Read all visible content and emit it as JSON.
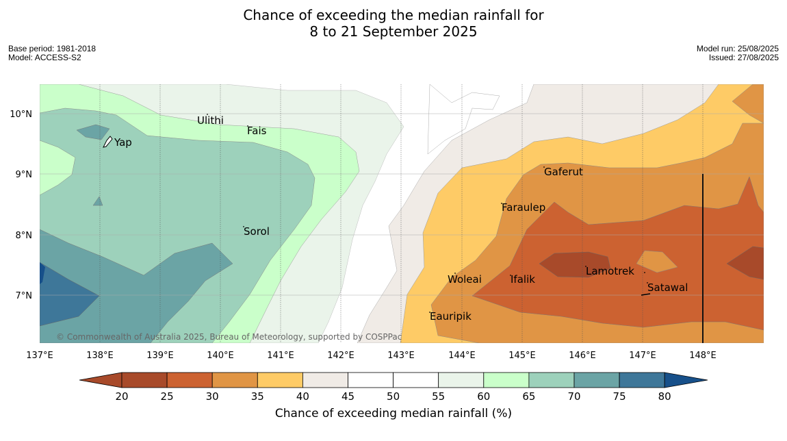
{
  "header": {
    "title_line1": "Chance of exceeding the median rainfall for",
    "title_line2": "8 to 21 September 2025",
    "base_period": "Base period: 1981-2018",
    "model": "Model: ACCESS-S2",
    "model_run": "Model run: 25/08/2025",
    "issued": "Issued: 27/08/2025"
  },
  "map": {
    "lon_labels": [
      "137°E",
      "138°E",
      "139°E",
      "140°E",
      "141°E",
      "142°E",
      "143°E",
      "144°E",
      "145°E",
      "146°E",
      "147°E",
      "148°E"
    ],
    "lat_labels": [
      "10°N",
      "9°N",
      "8°N",
      "7°N"
    ],
    "places": [
      {
        "name": "Ulithi"
      },
      {
        "name": "Fais"
      },
      {
        "name": "Yap"
      },
      {
        "name": "Gaferut"
      },
      {
        "name": "Faraulep"
      },
      {
        "name": "Sorol"
      },
      {
        "name": "Lamotrek"
      },
      {
        "name": "Woleai"
      },
      {
        "name": "Ifalik"
      },
      {
        "name": "Satawal"
      },
      {
        "name": "Eauripik"
      }
    ],
    "copyright": "© Commonwealth of Australia 2025, Bureau of Meteorology, supported by COSPPac"
  },
  "colorbar": {
    "ticks": [
      "20",
      "25",
      "30",
      "35",
      "40",
      "45",
      "50",
      "55",
      "60",
      "65",
      "70",
      "75",
      "80"
    ],
    "colors": [
      "#a84a2a",
      "#cc6231",
      "#e09545",
      "#fecb66",
      "#f0ebe6",
      "#ffffff",
      "#ffffff",
      "#eaf4ea",
      "#caffca",
      "#9dd1bb",
      "#6ba4a5",
      "#3e7799",
      "#17508a"
    ],
    "label": "Chance of exceeding median rainfall (%)"
  }
}
